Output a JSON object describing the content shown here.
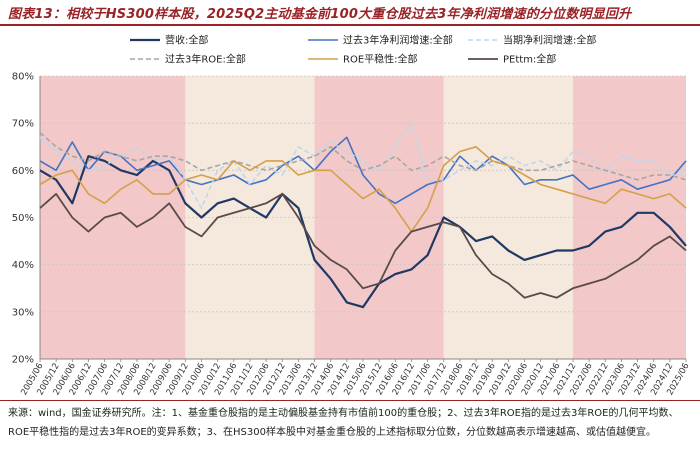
{
  "figure": {
    "title": "图表13：相较于HS300样本股，2025Q2主动基金前100大重仓股过去3年净利润增速的分位数明显回升",
    "source": "来源：wind，国金证券研究所。注：1、基金重仓股指的是主动偏股基金持有市值前100的重仓股；2、过去3年ROE指的是过去3年ROE的几何平均数、ROE平稳性指的是过去3年ROE的变异系数；3、在HS300样本股中对基金重仓股的上述指标取分位数，分位数越高表示增速越高、或估值越便宜。"
  },
  "colors": {
    "shade_pink": "#f2c8c8",
    "shade_beige": "#f5e8dc",
    "grid": "#c8c8c8"
  },
  "chart_data": {
    "type": "line",
    "title": "",
    "xlabel": "",
    "ylabel": "",
    "ylim": [
      20,
      80
    ],
    "yticks": [
      "20%",
      "30%",
      "40%",
      "50%",
      "60%",
      "70%",
      "80%"
    ],
    "x": [
      "2005/06",
      "2005/12",
      "2006/06",
      "2006/12",
      "2007/06",
      "2007/12",
      "2008/06",
      "2008/12",
      "2009/06",
      "2009/12",
      "2010/06",
      "2010/12",
      "2011/06",
      "2011/12",
      "2012/06",
      "2012/12",
      "2013/06",
      "2013/12",
      "2014/06",
      "2014/12",
      "2015/06",
      "2015/12",
      "2016/06",
      "2016/12",
      "2017/06",
      "2017/12",
      "2018/06",
      "2018/12",
      "2019/06",
      "2019/12",
      "2020/06",
      "2020/12",
      "2021/06",
      "2021/12",
      "2022/06",
      "2022/12",
      "2023/06",
      "2023/12",
      "2024/06",
      "2024/12",
      "2025/06"
    ],
    "shaded_regions": [
      {
        "from": 0,
        "to": 9,
        "color": "pink"
      },
      {
        "from": 9,
        "to": 17,
        "color": "beige"
      },
      {
        "from": 17,
        "to": 25,
        "color": "pink"
      },
      {
        "from": 25,
        "to": 33,
        "color": "beige"
      },
      {
        "from": 33,
        "to": 40,
        "color": "pink"
      }
    ],
    "series": [
      {
        "name": "营收:全部",
        "color": "#1f3864",
        "dash": "solid",
        "width": 2.2,
        "values": [
          60,
          58,
          53,
          63,
          62,
          60,
          59,
          62,
          60,
          53,
          50,
          53,
          54,
          52,
          50,
          55,
          52,
          41,
          37,
          32,
          31,
          36,
          38,
          39,
          42,
          50,
          48,
          45,
          46,
          43,
          41,
          42,
          43,
          43,
          44,
          47,
          48,
          51,
          51,
          48,
          44
        ]
      },
      {
        "name": "过去3年净利润增速:全部",
        "color": "#4472c4",
        "dash": "solid",
        "width": 1.6,
        "values": [
          62,
          60,
          66,
          60,
          64,
          63,
          60,
          61,
          62,
          58,
          57,
          58,
          59,
          57,
          58,
          61,
          63,
          60,
          64,
          67,
          59,
          55,
          53,
          55,
          57,
          58,
          63,
          60,
          63,
          61,
          57,
          58,
          58,
          59,
          56,
          57,
          58,
          56,
          57,
          58,
          62
        ]
      },
      {
        "name": "当期净利润增速:全部",
        "color": "#bdd7ee",
        "dash": "dash",
        "width": 1.6,
        "values": [
          67,
          64,
          62,
          60,
          61,
          63,
          65,
          62,
          63,
          58,
          52,
          60,
          62,
          57,
          61,
          59,
          65,
          63,
          66,
          64,
          62,
          60,
          65,
          70,
          58,
          58,
          60,
          62,
          61,
          63,
          61,
          62,
          60,
          64,
          63,
          60,
          63,
          62,
          62,
          59,
          59
        ]
      },
      {
        "name": "过去3年ROE:全部",
        "color": "#a6a6a6",
        "dash": "dash",
        "width": 1.6,
        "values": [
          68,
          65,
          63,
          62,
          64,
          63,
          62,
          63,
          63,
          62,
          60,
          61,
          62,
          61,
          60,
          61,
          62,
          63,
          65,
          62,
          60,
          61,
          63,
          60,
          61,
          63,
          61,
          60,
          62,
          61,
          60,
          60,
          61,
          62,
          61,
          60,
          59,
          58,
          59,
          59,
          58
        ]
      },
      {
        "name": "ROE平稳性:全部",
        "color": "#d4a04a",
        "dash": "solid",
        "width": 1.6,
        "values": [
          57,
          59,
          60,
          55,
          53,
          56,
          58,
          55,
          55,
          58,
          59,
          58,
          62,
          60,
          62,
          62,
          59,
          60,
          60,
          57,
          54,
          56,
          52,
          47,
          52,
          61,
          64,
          65,
          62,
          61,
          59,
          57,
          56,
          55,
          54,
          53,
          56,
          55,
          54,
          55,
          52
        ]
      },
      {
        "name": "PEttm:全部",
        "color": "#5a4a48",
        "dash": "solid",
        "width": 1.8,
        "values": [
          52,
          55,
          50,
          47,
          50,
          51,
          48,
          50,
          53,
          48,
          46,
          50,
          51,
          52,
          53,
          55,
          50,
          44,
          41,
          39,
          35,
          36,
          43,
          47,
          48,
          49,
          48,
          42,
          38,
          36,
          33,
          34,
          33,
          35,
          36,
          37,
          39,
          41,
          44,
          46,
          43
        ]
      }
    ]
  }
}
